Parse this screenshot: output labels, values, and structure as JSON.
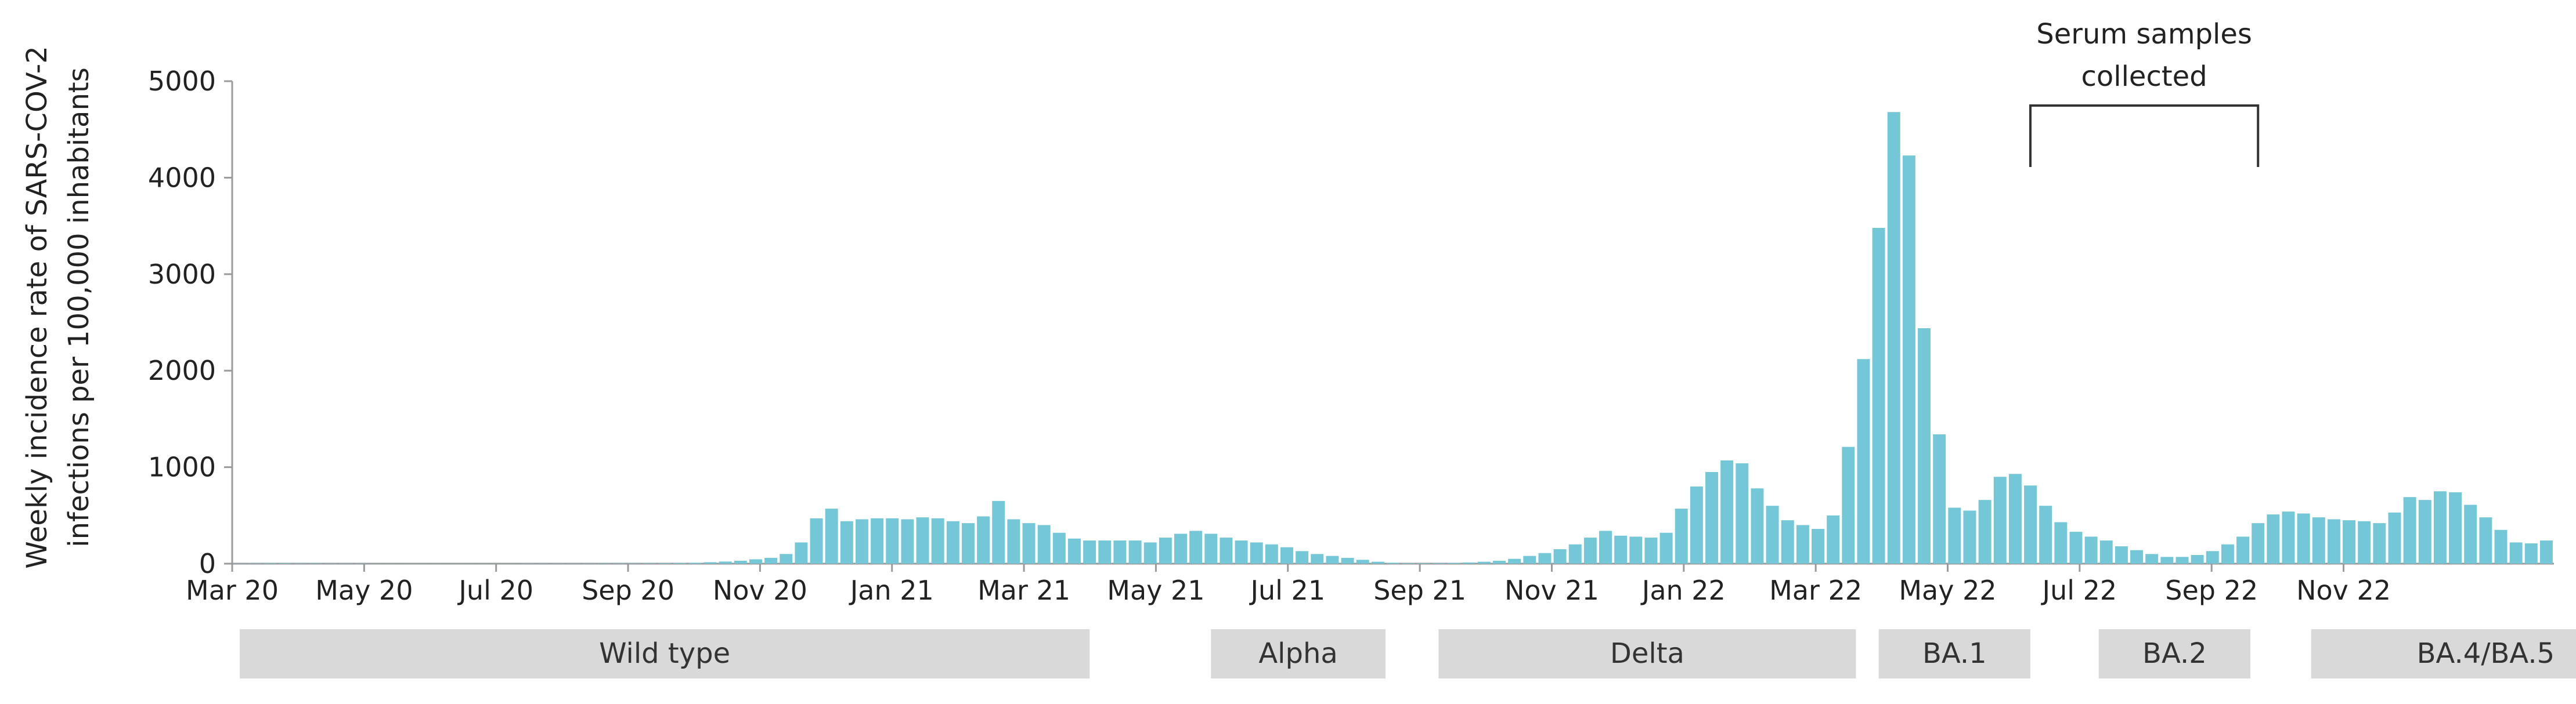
{
  "chart_data": {
    "type": "bar",
    "ylabel_lines": [
      "Weekly incidence rate of SARS-COV-2",
      "infections per 100,000 inhabitants"
    ],
    "ylim": [
      0,
      5000
    ],
    "yticks": [
      0,
      1000,
      2000,
      3000,
      4000,
      5000
    ],
    "xtick_labels": [
      "Mar 20",
      "May 20",
      "Jul 20",
      "Sep 20",
      "Nov 20",
      "Jan 21",
      "Mar 21",
      "May 21",
      "Jul 21",
      "Sep 21",
      "Nov 21",
      "Jan 22",
      "Mar 22",
      "May 22",
      "Jul 22",
      "Sep 22",
      "Nov 22"
    ],
    "weeks_per_month": 4.348,
    "bar_color": "#74c7d6",
    "values": [
      2,
      3,
      4,
      4,
      3,
      3,
      2,
      2,
      2,
      1,
      1,
      1,
      1,
      1,
      1,
      1,
      1,
      1,
      1,
      2,
      2,
      2,
      2,
      2,
      3,
      3,
      3,
      4,
      5,
      7,
      10,
      15,
      22,
      30,
      45,
      60,
      100,
      220,
      470,
      570,
      440,
      460,
      470,
      470,
      460,
      480,
      470,
      440,
      420,
      490,
      650,
      460,
      420,
      400,
      320,
      260,
      240,
      240,
      240,
      240,
      220,
      270,
      310,
      340,
      310,
      270,
      240,
      220,
      200,
      170,
      130,
      100,
      80,
      60,
      40,
      20,
      10,
      5,
      5,
      5,
      8,
      12,
      20,
      30,
      50,
      80,
      110,
      150,
      200,
      270,
      340,
      290,
      280,
      270,
      320,
      570,
      800,
      950,
      1070,
      1040,
      780,
      600,
      450,
      400,
      360,
      500,
      1210,
      2120,
      3480,
      4680,
      4230,
      2440,
      1340,
      580,
      550,
      660,
      900,
      930,
      810,
      600,
      430,
      330,
      280,
      240,
      180,
      140,
      100,
      70,
      70,
      90,
      130,
      200,
      280,
      420,
      510,
      540,
      520,
      480,
      460,
      450,
      440,
      420,
      530,
      690,
      660,
      750,
      740,
      610,
      480,
      350,
      220,
      210,
      240
    ],
    "variants": [
      {
        "label": "Wild type",
        "start_week": 0.5,
        "end_week": 56.5
      },
      {
        "label": "Alpha",
        "start_week": 64.5,
        "end_week": 76
      },
      {
        "label": "Delta",
        "start_week": 79.5,
        "end_week": 107
      },
      {
        "label": "BA.1",
        "start_week": 108.5,
        "end_week": 118.5
      },
      {
        "label": "BA.2",
        "start_week": 123,
        "end_week": 133
      },
      {
        "label": "BA.4/BA.5",
        "start_week": 137,
        "end_week": 160
      }
    ],
    "annotation": {
      "lines": [
        "Serum samples",
        "collected"
      ],
      "start_week": 118.5,
      "end_week": 133.5
    },
    "grid": false,
    "legend": "none"
  }
}
